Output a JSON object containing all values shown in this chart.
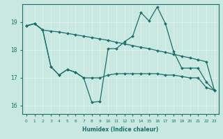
{
  "xlabel": "Humidex (Indice chaleur)",
  "ylabel": "",
  "xlim": [
    -0.5,
    23.5
  ],
  "ylim": [
    15.7,
    19.65
  ],
  "yticks": [
    16,
    17,
    18,
    19
  ],
  "xticks": [
    0,
    1,
    2,
    3,
    4,
    5,
    6,
    7,
    8,
    9,
    10,
    11,
    12,
    13,
    14,
    15,
    16,
    17,
    18,
    19,
    20,
    21,
    22,
    23
  ],
  "bg_color": "#c8e8e0",
  "line_color": "#1a6e6e",
  "grid_color": "#e0f0f0",
  "series": [
    {
      "x": [
        0,
        1,
        2,
        3,
        4,
        5,
        6,
        7,
        8,
        9,
        10,
        11,
        12,
        13,
        14,
        15,
        16,
        17,
        18,
        19,
        20,
        21,
        22,
        23
      ],
      "y": [
        18.87,
        18.95,
        18.72,
        18.68,
        18.65,
        18.6,
        18.55,
        18.5,
        18.45,
        18.4,
        18.35,
        18.28,
        18.22,
        18.16,
        18.1,
        18.05,
        17.98,
        17.92,
        17.85,
        17.78,
        17.72,
        17.65,
        17.58,
        16.55
      ]
    },
    {
      "x": [
        0,
        1,
        2,
        3,
        4,
        5,
        6,
        7,
        8,
        9,
        10,
        11,
        12,
        13,
        14,
        15,
        16,
        17,
        18,
        19,
        20,
        21,
        22,
        23
      ],
      "y": [
        18.87,
        18.95,
        18.72,
        17.4,
        17.1,
        17.3,
        17.2,
        17.0,
        17.0,
        17.0,
        17.1,
        17.15,
        17.15,
        17.15,
        17.15,
        17.15,
        17.15,
        17.1,
        17.1,
        17.05,
        17.0,
        17.0,
        16.65,
        16.55
      ]
    },
    {
      "x": [
        0,
        1,
        2,
        3,
        4,
        5,
        6,
        7,
        8,
        9,
        10,
        11,
        12,
        13,
        14,
        15,
        16,
        17,
        18,
        19,
        20,
        21,
        22,
        23
      ],
      "y": [
        18.87,
        18.95,
        18.72,
        17.4,
        17.1,
        17.3,
        17.2,
        17.0,
        16.12,
        16.15,
        18.05,
        18.05,
        18.3,
        18.5,
        19.35,
        19.05,
        19.55,
        18.95,
        17.95,
        17.35,
        17.35,
        17.35,
        16.85,
        16.55
      ]
    }
  ]
}
